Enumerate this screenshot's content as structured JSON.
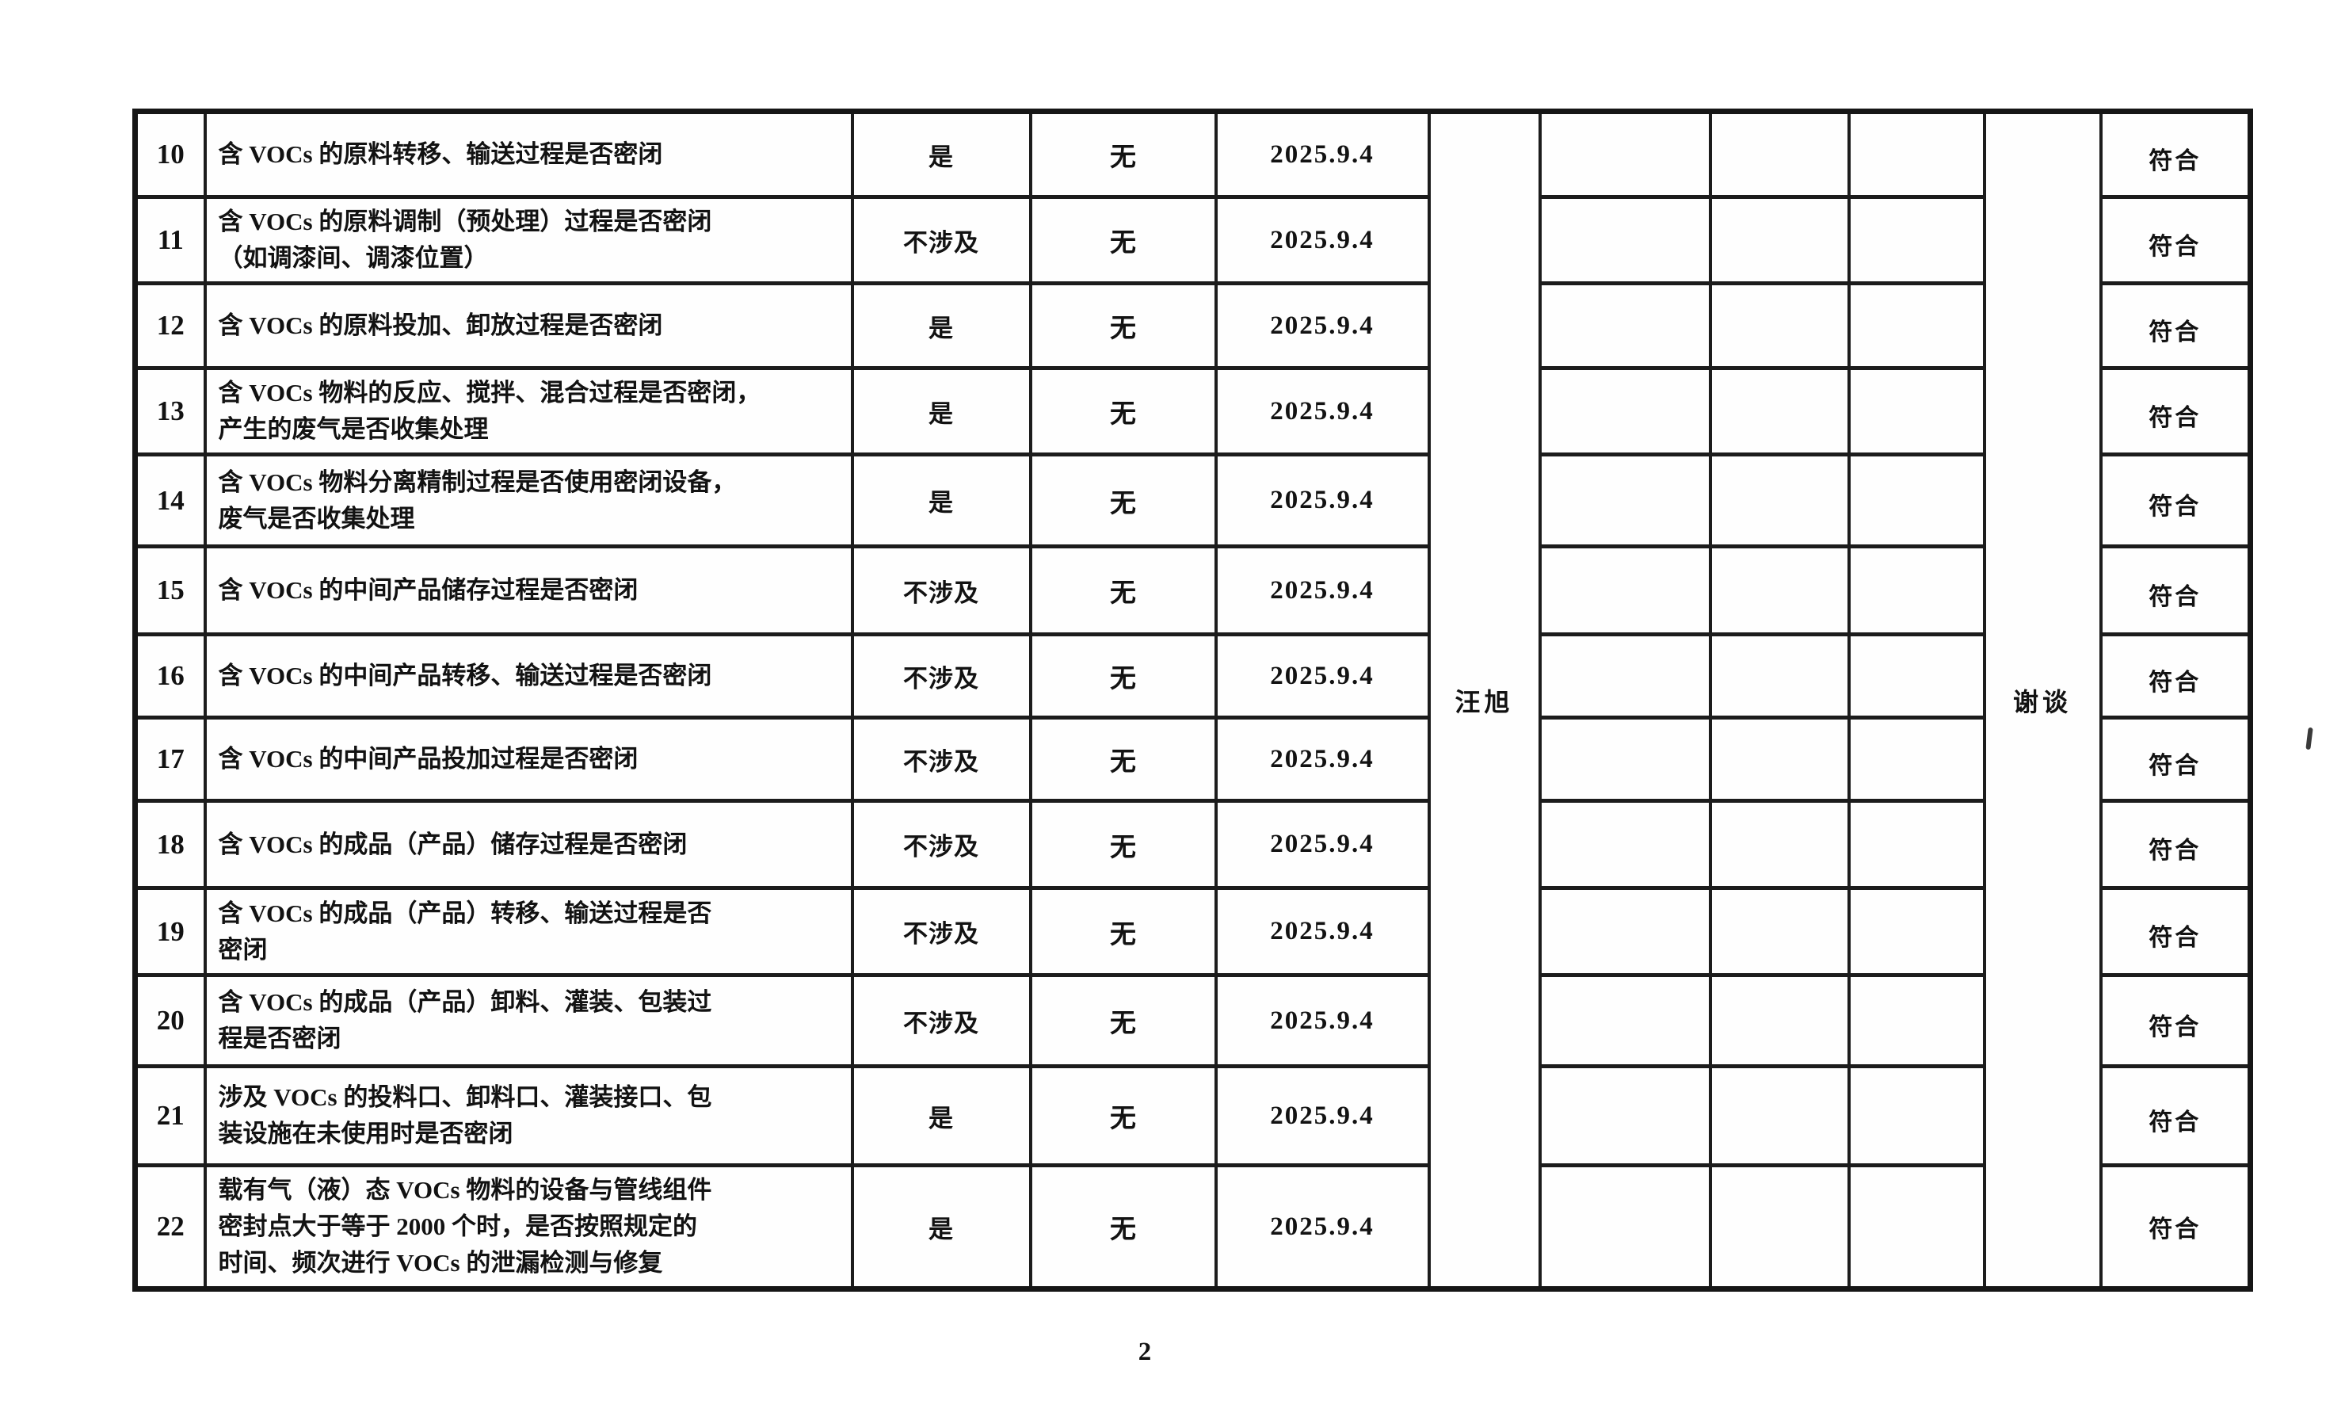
{
  "page": {
    "number": "2"
  },
  "table": {
    "inspector_signature": "汪旭",
    "reviewer_signature": "谢谈",
    "rows": [
      {
        "no": "10",
        "item": "含 VOCs 的原料转移、输送过程是否密闭",
        "answer": "是",
        "problem": "无",
        "date": "2025.9.4",
        "conclusion": "符合"
      },
      {
        "no": "11",
        "item": "含 VOCs 的原料调制（预处理）过程是否密闭\n（如调漆间、调漆位置）",
        "answer": "不涉及",
        "problem": "无",
        "date": "2025.9.4",
        "conclusion": "符合"
      },
      {
        "no": "12",
        "item": "含 VOCs 的原料投加、卸放过程是否密闭",
        "answer": "是",
        "problem": "无",
        "date": "2025.9.4",
        "conclusion": "符合"
      },
      {
        "no": "13",
        "item": "含 VOCs 物料的反应、搅拌、混合过程是否密闭，\n产生的废气是否收集处理",
        "answer": "是",
        "problem": "无",
        "date": "2025.9.4",
        "conclusion": "符合"
      },
      {
        "no": "14",
        "item": "含 VOCs 物料分离精制过程是否使用密闭设备，\n废气是否收集处理",
        "answer": "是",
        "problem": "无",
        "date": "2025.9.4",
        "conclusion": "符合"
      },
      {
        "no": "15",
        "item": "含 VOCs 的中间产品储存过程是否密闭",
        "answer": "不涉及",
        "problem": "无",
        "date": "2025.9.4",
        "conclusion": "符合"
      },
      {
        "no": "16",
        "item": "含 VOCs 的中间产品转移、输送过程是否密闭",
        "answer": "不涉及",
        "problem": "无",
        "date": "2025.9.4",
        "conclusion": "符合"
      },
      {
        "no": "17",
        "item": "含 VOCs 的中间产品投加过程是否密闭",
        "answer": "不涉及",
        "problem": "无",
        "date": "2025.9.4",
        "conclusion": "符合"
      },
      {
        "no": "18",
        "item": "含 VOCs 的成品（产品）储存过程是否密闭",
        "answer": "不涉及",
        "problem": "无",
        "date": "2025.9.4",
        "conclusion": "符合"
      },
      {
        "no": "19",
        "item": "含 VOCs 的成品（产品）转移、输送过程是否\n密闭",
        "answer": "不涉及",
        "problem": "无",
        "date": "2025.9.4",
        "conclusion": "符合"
      },
      {
        "no": "20",
        "item": "含 VOCs 的成品（产品）卸料、灌装、包装过\n程是否密闭",
        "answer": "不涉及",
        "problem": "无",
        "date": "2025.9.4",
        "conclusion": "符合"
      },
      {
        "no": "21",
        "item": "涉及 VOCs 的投料口、卸料口、灌装接口、包\n装设施在未使用时是否密闭",
        "answer": "是",
        "problem": "无",
        "date": "2025.9.4",
        "conclusion": "符合"
      },
      {
        "no": "22",
        "item": "载有气（液）态 VOCs 物料的设备与管线组件\n密封点大于等于 2000 个时，是否按照规定的\n时间、频次进行 VOCs 的泄漏检测与修复",
        "answer": "是",
        "problem": "无",
        "date": "2025.9.4",
        "conclusion": "符合"
      }
    ]
  }
}
